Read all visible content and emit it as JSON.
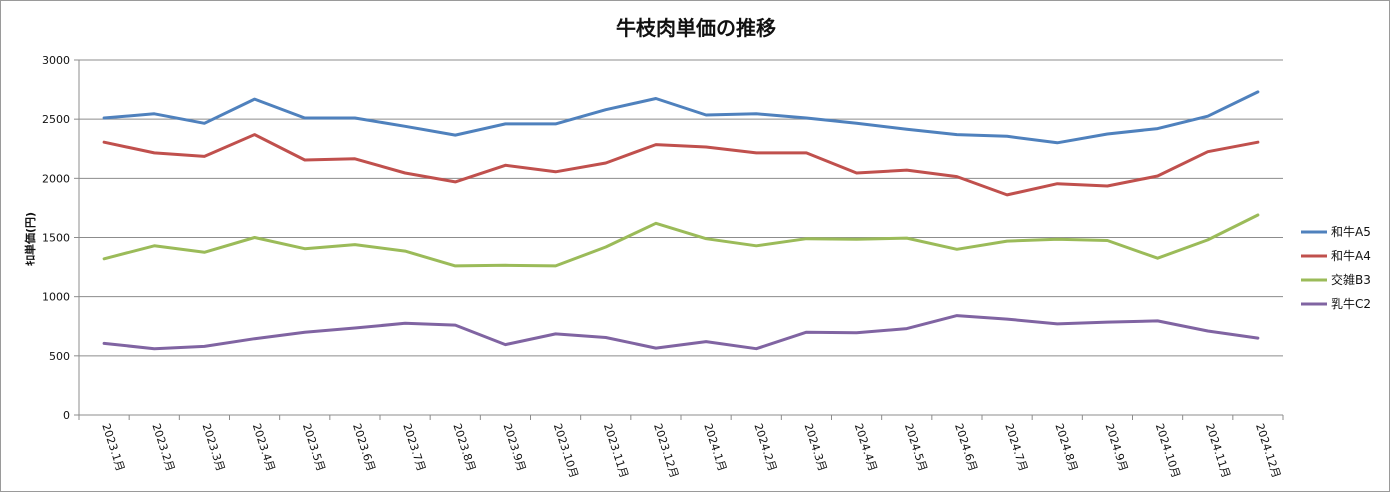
{
  "chart_data": {
    "type": "line",
    "title": "牛枝肉単価の推移",
    "xlabel": "",
    "ylabel": "ｷﾛ単価(円)",
    "ylim": [
      0,
      3000
    ],
    "yticks": [
      0,
      500,
      1000,
      1500,
      2000,
      2500,
      3000
    ],
    "grid": true,
    "legend_position": "right",
    "categories": [
      "2023.1月",
      "2023.2月",
      "2023.3月",
      "2023.4月",
      "2023.5月",
      "2023.6月",
      "2023.7月",
      "2023.8月",
      "2023.9月",
      "2023.10月",
      "2023.11月",
      "2023.12月",
      "2024.1月",
      "2024.2月",
      "2024.3月",
      "2024.4月",
      "2024.5月",
      "2024.6月",
      "2024.7月",
      "2024.8月",
      "2024.9月",
      "2024.10月",
      "2024.11月",
      "2024.12月"
    ],
    "series": [
      {
        "name": "和牛A5",
        "color": "#4f81bd",
        "values": [
          2510,
          2545,
          2465,
          2670,
          2510,
          2510,
          2440,
          2365,
          2460,
          2460,
          2580,
          2675,
          2535,
          2545,
          2510,
          2465,
          2415,
          2370,
          2355,
          2300,
          2375,
          2420,
          2525,
          2730
        ]
      },
      {
        "name": "和牛A4",
        "color": "#c0504d",
        "values": [
          2305,
          2215,
          2185,
          2370,
          2155,
          2165,
          2045,
          1970,
          2110,
          2055,
          2130,
          2285,
          2265,
          2215,
          2215,
          2045,
          2070,
          2015,
          1860,
          1955,
          1935,
          2020,
          2225,
          2305
        ]
      },
      {
        "name": "交雑B3",
        "color": "#9bbb59",
        "values": [
          1320,
          1430,
          1375,
          1500,
          1405,
          1440,
          1385,
          1260,
          1265,
          1260,
          1420,
          1620,
          1490,
          1430,
          1490,
          1485,
          1495,
          1400,
          1470,
          1485,
          1475,
          1325,
          1480,
          1690
        ]
      },
      {
        "name": "乳牛C2",
        "color": "#8064a2",
        "values": [
          605,
          560,
          580,
          645,
          700,
          735,
          775,
          760,
          595,
          685,
          655,
          565,
          620,
          560,
          700,
          695,
          730,
          840,
          810,
          770,
          785,
          795,
          710,
          650
        ]
      }
    ]
  }
}
